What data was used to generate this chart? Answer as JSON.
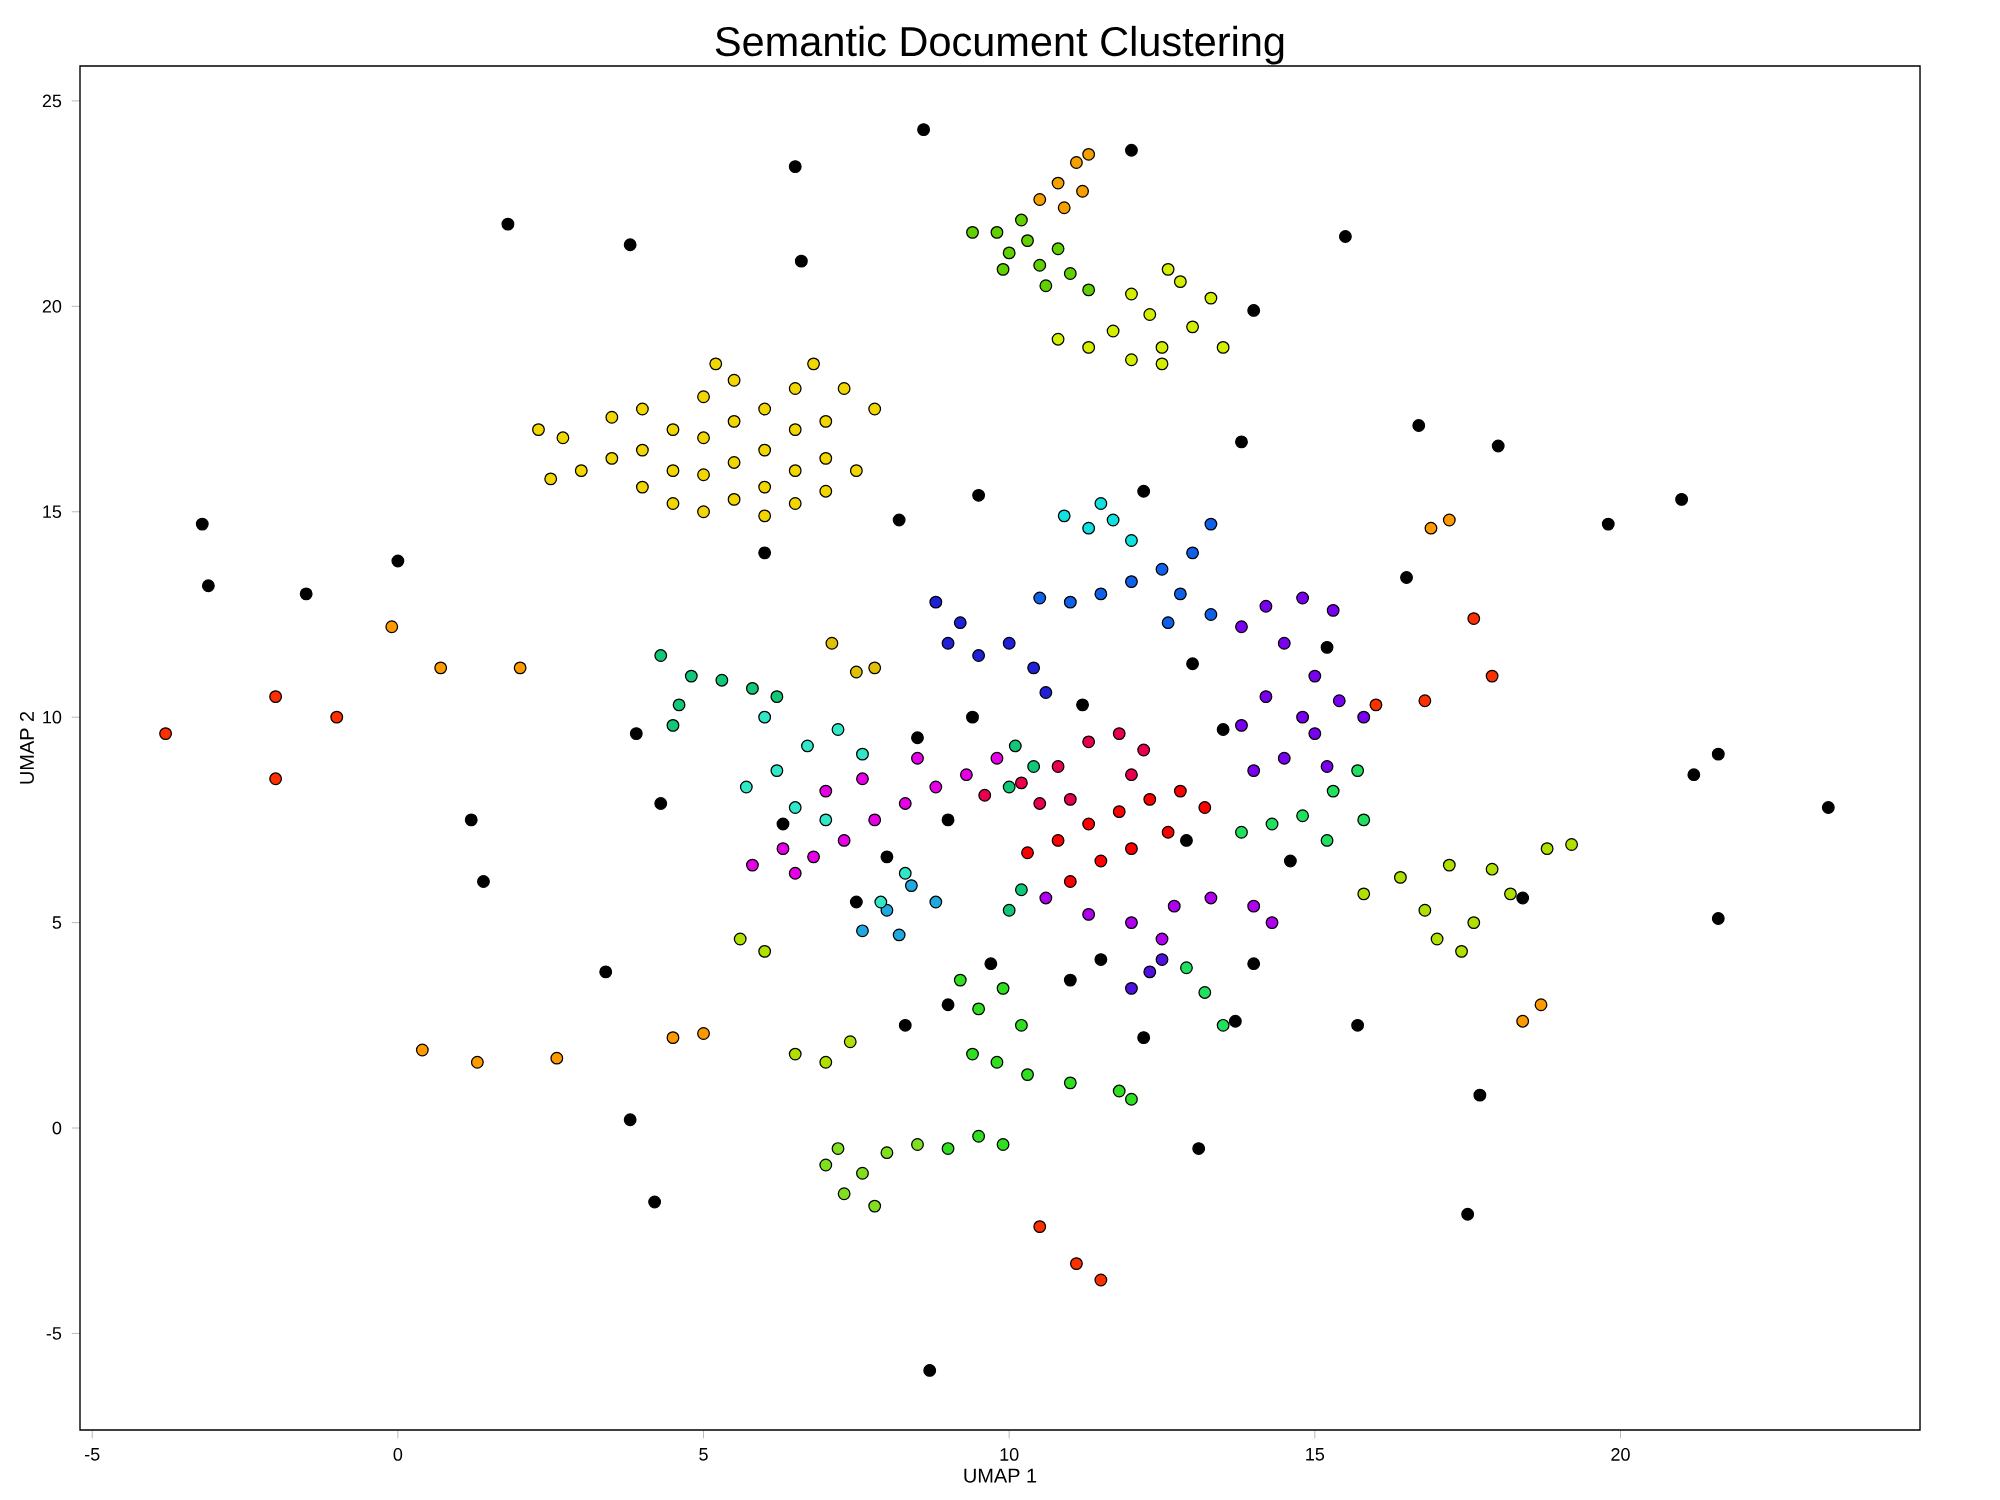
{
  "chart_data": {
    "type": "scatter",
    "title": "Semantic Document Clustering",
    "xlabel": "UMAP 1",
    "ylabel": "UMAP 2",
    "xlim": [
      -5.2,
      24.9
    ],
    "ylim": [
      -7.35,
      25.85
    ],
    "xticks": [
      -5,
      0,
      5,
      10,
      15,
      20
    ],
    "yticks": [
      -5,
      0,
      5,
      10,
      15,
      20,
      25
    ],
    "marker": "circle",
    "series": [
      {
        "color": "#000000",
        "x": [
          -3.2,
          -3.1,
          -1.5,
          0,
          1.8,
          3.8,
          6.5,
          6.6,
          8.6,
          12.0,
          15.5,
          14.0,
          13.8,
          16.7,
          18.0,
          19.8,
          21.0,
          21.6,
          21.2,
          23.4,
          21.6,
          18.4,
          17.5,
          17.7,
          15.7,
          13.7,
          13.1,
          8.7,
          4.2,
          3.8,
          3.4,
          1.4,
          1.2,
          4.3,
          3.9,
          6.0,
          8.2,
          9.5,
          12.2,
          9.4,
          11.2,
          13.5,
          12.9,
          14.6,
          9.0,
          8.0,
          9.7,
          11.0,
          12.2,
          8.3,
          8.5,
          6.3,
          15.2,
          16.5,
          13.0,
          14.0,
          11.5,
          9.0,
          7.5
        ],
        "values": [
          14.7,
          13.2,
          13.0,
          13.8,
          22.0,
          21.5,
          23.4,
          21.1,
          24.3,
          23.8,
          21.7,
          19.9,
          16.7,
          17.1,
          16.6,
          14.7,
          15.3,
          9.1,
          8.6,
          7.8,
          5.1,
          5.6,
          -2.1,
          0.8,
          2.5,
          2.6,
          -0.5,
          -5.9,
          -1.8,
          0.2,
          3.8,
          6.0,
          7.5,
          7.9,
          9.6,
          14.0,
          14.8,
          15.4,
          15.5,
          10.0,
          10.3,
          9.7,
          7.0,
          6.5,
          7.5,
          6.6,
          4.0,
          3.6,
          2.2,
          2.5,
          9.5,
          7.4,
          11.7,
          13.4,
          11.3,
          4.0,
          4.1,
          3.0,
          5.5
        ]
      },
      {
        "color": "#f2d600",
        "x": [
          2.3,
          2.7,
          2.5,
          3.0,
          3.5,
          3.5,
          4.0,
          4.0,
          4.0,
          4.5,
          4.5,
          4.5,
          5.0,
          5.0,
          5.0,
          5.0,
          5.5,
          5.5,
          5.5,
          5.5,
          6.0,
          6.0,
          6.0,
          6.0,
          6.5,
          6.5,
          6.5,
          6.5,
          7.0,
          7.0,
          7.0,
          7.5,
          7.3,
          7.8,
          5.2,
          6.8
        ],
        "values": [
          17.0,
          16.8,
          15.8,
          16.0,
          16.3,
          17.3,
          17.5,
          16.5,
          15.6,
          17.0,
          16.0,
          15.2,
          17.8,
          16.8,
          15.9,
          15.0,
          18.2,
          17.2,
          16.2,
          15.3,
          17.5,
          16.5,
          15.6,
          14.9,
          18.0,
          17.0,
          16.0,
          15.2,
          17.2,
          16.3,
          15.5,
          16.0,
          18.0,
          17.5,
          18.6,
          18.6
        ]
      },
      {
        "color": "#f5a000",
        "x": [
          10.5,
          10.8,
          11.1,
          11.3,
          10.9,
          11.2
        ],
        "values": [
          22.6,
          23.0,
          23.5,
          23.7,
          22.4,
          22.8
        ]
      },
      {
        "color": "#60d000",
        "x": [
          9.4,
          9.8,
          10.0,
          10.3,
          10.5,
          10.8,
          11.0,
          11.3,
          10.2,
          10.6,
          9.9
        ],
        "values": [
          21.8,
          21.8,
          21.3,
          21.6,
          21.0,
          21.4,
          20.8,
          20.4,
          22.1,
          20.5,
          20.9
        ]
      },
      {
        "color": "#d4ee00",
        "x": [
          10.8,
          11.3,
          11.7,
          12.0,
          12.3,
          12.5,
          12.8,
          12.5,
          13.0,
          13.3,
          13.5,
          12.0,
          12.6
        ],
        "values": [
          19.2,
          19.0,
          19.4,
          20.3,
          19.8,
          19.0,
          20.6,
          18.6,
          19.5,
          20.2,
          19.0,
          18.7,
          20.9
        ]
      },
      {
        "color": "#10e0e0",
        "x": [
          10.9,
          11.3,
          11.7,
          12.0,
          11.5
        ],
        "values": [
          14.9,
          14.6,
          14.8,
          14.3,
          15.2
        ]
      },
      {
        "color": "#1060e8",
        "x": [
          11.5,
          12.0,
          12.5,
          13.0,
          13.3,
          12.8,
          13.3,
          12.6,
          11.0,
          10.5
        ],
        "values": [
          13.0,
          13.3,
          13.6,
          14.0,
          14.7,
          13.0,
          12.5,
          12.3,
          12.8,
          12.9
        ]
      },
      {
        "color": "#2020d8",
        "x": [
          8.8,
          9.2,
          9.5,
          10.0,
          10.4,
          10.6,
          9.0
        ],
        "values": [
          12.8,
          12.3,
          11.5,
          11.8,
          11.2,
          10.6,
          11.8
        ]
      },
      {
        "color": "#20a8e0",
        "x": [
          7.6,
          8.0,
          8.4,
          8.8,
          8.2
        ],
        "values": [
          4.8,
          5.3,
          5.9,
          5.5,
          4.7
        ]
      },
      {
        "color": "#7a00f0",
        "x": [
          13.8,
          14.2,
          14.8,
          15.3,
          14.5,
          15.0,
          14.2,
          14.8,
          15.4,
          15.8,
          13.8,
          14.5,
          15.2,
          14.0,
          15.0
        ],
        "values": [
          12.2,
          12.7,
          12.9,
          12.6,
          11.8,
          11.0,
          10.5,
          10.0,
          10.4,
          10.0,
          9.8,
          9.0,
          8.8,
          8.7,
          9.6
        ]
      },
      {
        "color": "#e8004c",
        "x": [
          9.6,
          10.2,
          10.8,
          11.3,
          11.8,
          12.2,
          12.0,
          11.0,
          10.5
        ],
        "values": [
          8.1,
          8.4,
          8.8,
          9.4,
          9.6,
          9.2,
          8.6,
          8.0,
          7.9
        ]
      },
      {
        "color": "#ff0000",
        "x": [
          10.3,
          10.8,
          11.3,
          11.8,
          12.3,
          12.8,
          13.2,
          11.5,
          11.0,
          12.0,
          12.6
        ],
        "values": [
          6.7,
          7.0,
          7.4,
          7.7,
          8.0,
          8.2,
          7.8,
          6.5,
          6.0,
          6.8,
          7.2
        ]
      },
      {
        "color": "#e600e6",
        "x": [
          5.8,
          6.3,
          6.8,
          7.3,
          7.8,
          8.3,
          8.8,
          9.3,
          9.8,
          7.0,
          7.6,
          8.5,
          6.5
        ],
        "values": [
          6.4,
          6.8,
          6.6,
          7.0,
          7.5,
          7.9,
          8.3,
          8.6,
          9.0,
          8.2,
          8.5,
          9.0,
          6.2
        ]
      },
      {
        "color": "#b000f0",
        "x": [
          10.6,
          11.3,
          12.0,
          12.7,
          13.3,
          14.0,
          14.3,
          12.5
        ],
        "values": [
          5.6,
          5.2,
          5.0,
          5.4,
          5.6,
          5.4,
          5.0,
          4.6
        ]
      },
      {
        "color": "#5010e0",
        "x": [
          12.0,
          12.3,
          12.5
        ],
        "values": [
          3.4,
          3.8,
          4.1
        ]
      },
      {
        "color": "#10c878",
        "x": [
          4.3,
          4.8,
          5.3,
          5.8,
          6.2,
          4.6,
          4.5,
          10.1,
          10.4,
          10.0,
          10.0,
          10.2
        ],
        "values": [
          11.5,
          11.0,
          10.9,
          10.7,
          10.5,
          10.3,
          9.8,
          9.3,
          8.8,
          8.3,
          5.3,
          5.8
        ]
      },
      {
        "color": "#30e8c8",
        "x": [
          5.7,
          6.2,
          6.7,
          7.2,
          7.6,
          6.0,
          6.5,
          7.0,
          7.9,
          8.3
        ],
        "values": [
          8.3,
          8.7,
          9.3,
          9.7,
          9.1,
          10.0,
          7.8,
          7.5,
          5.5,
          6.2
        ]
      },
      {
        "color": "#20e060",
        "x": [
          13.8,
          14.3,
          14.8,
          15.3,
          15.7,
          15.2,
          15.8,
          12.9,
          13.2,
          13.5
        ],
        "values": [
          7.2,
          7.4,
          7.6,
          8.2,
          8.7,
          7.0,
          7.5,
          3.9,
          3.3,
          2.5
        ]
      },
      {
        "color": "#30e020",
        "x": [
          9.2,
          9.5,
          9.9,
          10.2,
          9.4,
          9.8,
          9.0,
          9.5,
          9.9,
          10.3,
          11.0,
          11.8,
          12.0
        ],
        "values": [
          3.6,
          2.9,
          3.4,
          2.5,
          1.8,
          1.6,
          -0.5,
          -0.2,
          -0.4,
          1.3,
          1.1,
          0.9,
          0.7
        ]
      },
      {
        "color": "#80e020",
        "x": [
          7.0,
          7.3,
          7.6,
          8.0,
          8.5,
          7.8,
          7.2
        ],
        "values": [
          -0.9,
          -1.6,
          -1.1,
          -0.6,
          -0.4,
          -1.9,
          -0.5
        ]
      },
      {
        "color": "#b0e000",
        "x": [
          15.8,
          16.4,
          16.8,
          17.2,
          17.6,
          17.0,
          17.4,
          18.2,
          18.8,
          19.2,
          17.9,
          6.5,
          7.0,
          7.4,
          5.6,
          6.0
        ],
        "values": [
          5.7,
          6.1,
          5.3,
          6.4,
          5.0,
          4.6,
          4.3,
          5.7,
          6.8,
          6.9,
          6.3,
          1.8,
          1.6,
          2.1,
          4.6,
          4.3
        ]
      },
      {
        "color": "#e0c000",
        "x": [
          7.1,
          7.5,
          7.8
        ],
        "values": [
          11.8,
          11.1,
          11.2
        ]
      },
      {
        "color": "#ff9900",
        "x": [
          17.2,
          16.9,
          18.7,
          18.4,
          5.0,
          4.5,
          0.4,
          2.6,
          1.3,
          -0.1,
          0.7,
          2.0
        ],
        "values": [
          14.8,
          14.6,
          3.0,
          2.6,
          2.3,
          2.2,
          1.9,
          1.7,
          1.6,
          12.2,
          11.2,
          11.2
        ]
      },
      {
        "color": "#ff3000",
        "x": [
          -3.8,
          -2.0,
          -2.0,
          -1.0,
          17.6,
          17.9,
          16.8,
          16.0,
          10.5,
          11.1,
          11.5
        ],
        "values": [
          9.6,
          10.5,
          8.5,
          10.0,
          12.4,
          11.0,
          10.4,
          10.3,
          -2.4,
          -3.3,
          -3.7
        ]
      }
    ]
  }
}
